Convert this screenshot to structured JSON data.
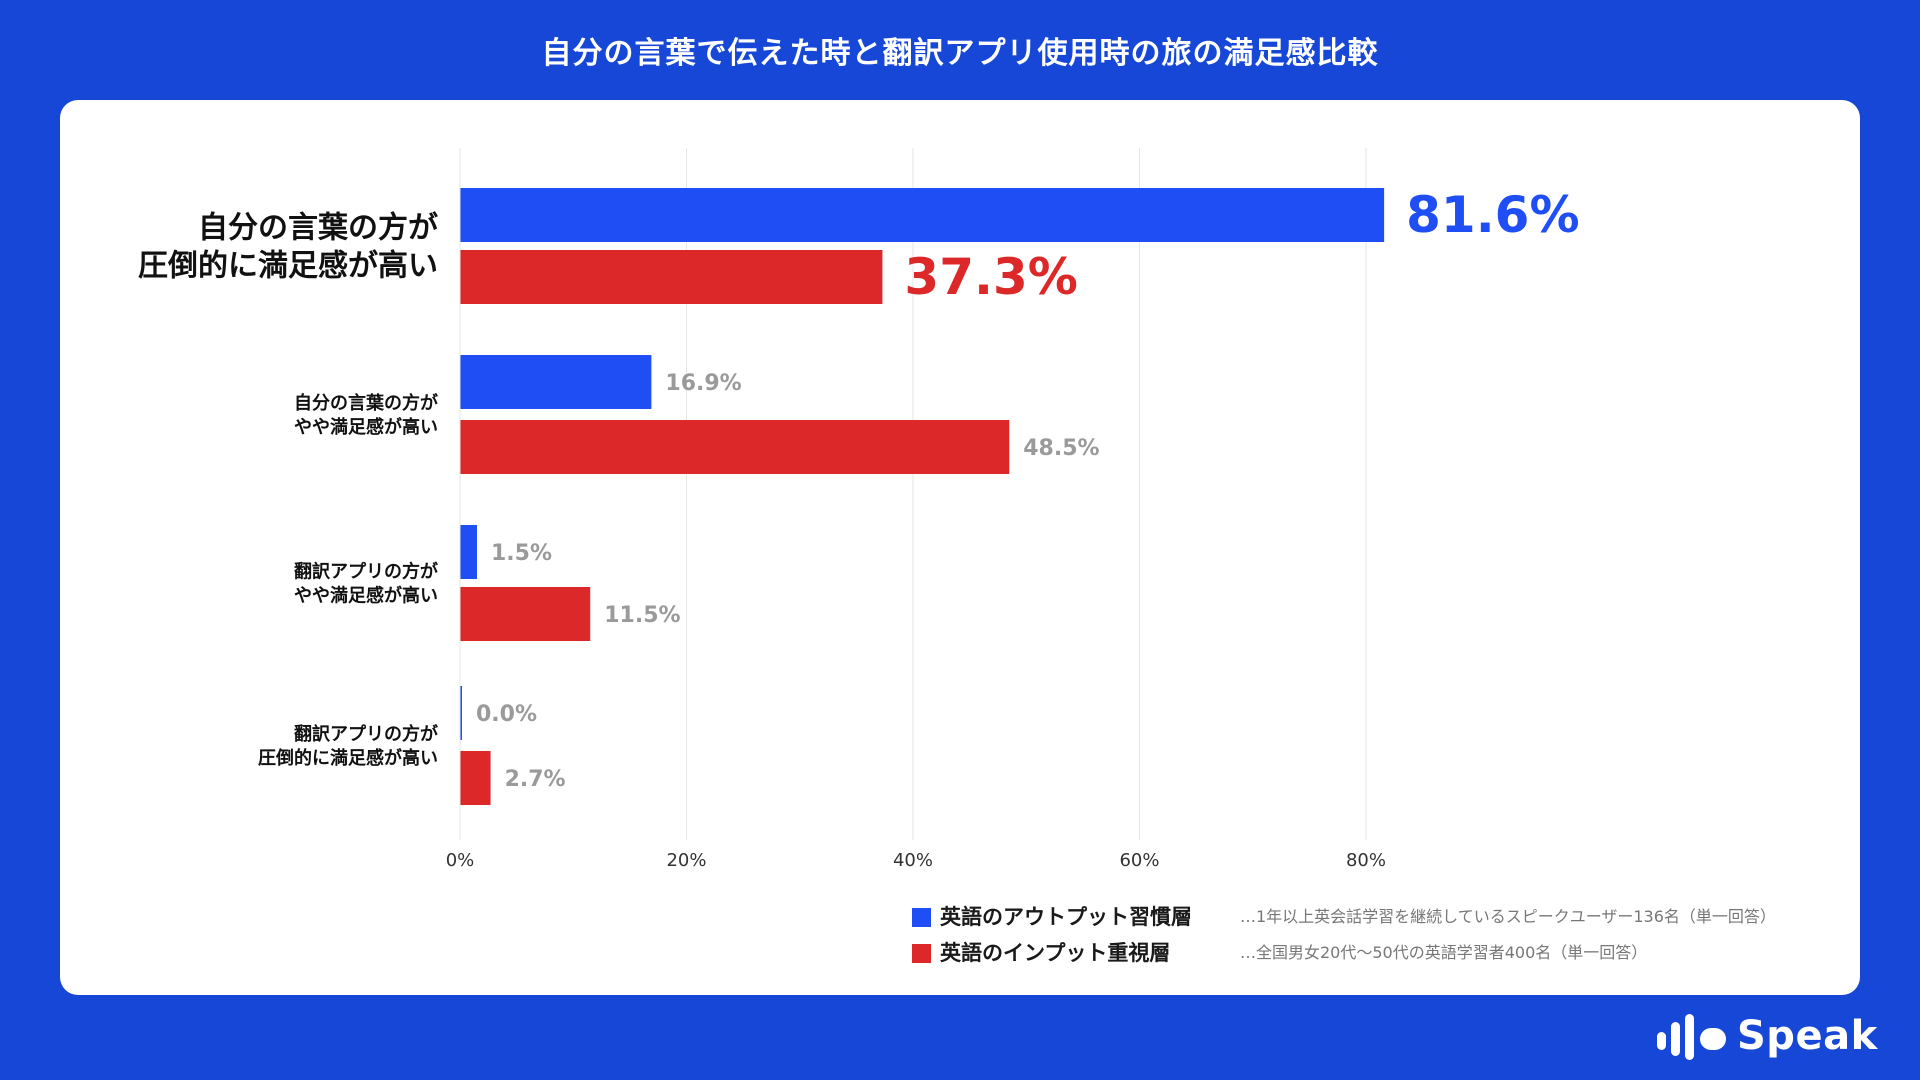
{
  "title": "自分の言葉で伝えた時と翻訳アプリ使用時の旅の満足感比較",
  "chart_data": {
    "type": "bar",
    "orientation": "horizontal",
    "categories": [
      [
        "自分の言葉の方が",
        "圧倒的に満足感が高い"
      ],
      [
        "自分の言葉の方が",
        "やや満足感が高い"
      ],
      [
        "翻訳アプリの方が",
        "やや満足感が高い"
      ],
      [
        "翻訳アプリの方が",
        "圧倒的に満足感が高い"
      ]
    ],
    "series": [
      {
        "name": "英語のアウトプット習慣層",
        "values": [
          81.6,
          16.9,
          1.5,
          0.0
        ],
        "color": "#1f4ef5"
      },
      {
        "name": "英語のインプット重視層",
        "values": [
          37.3,
          48.5,
          11.5,
          2.7
        ],
        "color": "#dc2828"
      }
    ],
    "value_labels": [
      [
        "81.6%",
        "16.9%",
        "1.5%",
        "0.0%"
      ],
      [
        "37.3%",
        "48.5%",
        "11.5%",
        "2.7%"
      ]
    ],
    "xlim": [
      0,
      100
    ],
    "xticks": [
      0,
      20,
      40,
      60,
      80
    ],
    "xtick_labels": [
      "0%",
      "20%",
      "40%",
      "60%",
      "80%"
    ],
    "grid": true,
    "highlight_category_index": 0,
    "legend_position": "bottom-right"
  },
  "legend": [
    {
      "label": "英語のアウトプット習慣層",
      "note": "…1年以上英会話学習を継続しているスピークユーザー136名（単一回答）",
      "color": "#1f4ef5"
    },
    {
      "label": "英語のインプット重視層",
      "note": "…全国男女20代〜50代の英語学習者400名（単一回答）",
      "color": "#dc2828"
    }
  ],
  "logo": {
    "text": "Speak"
  }
}
